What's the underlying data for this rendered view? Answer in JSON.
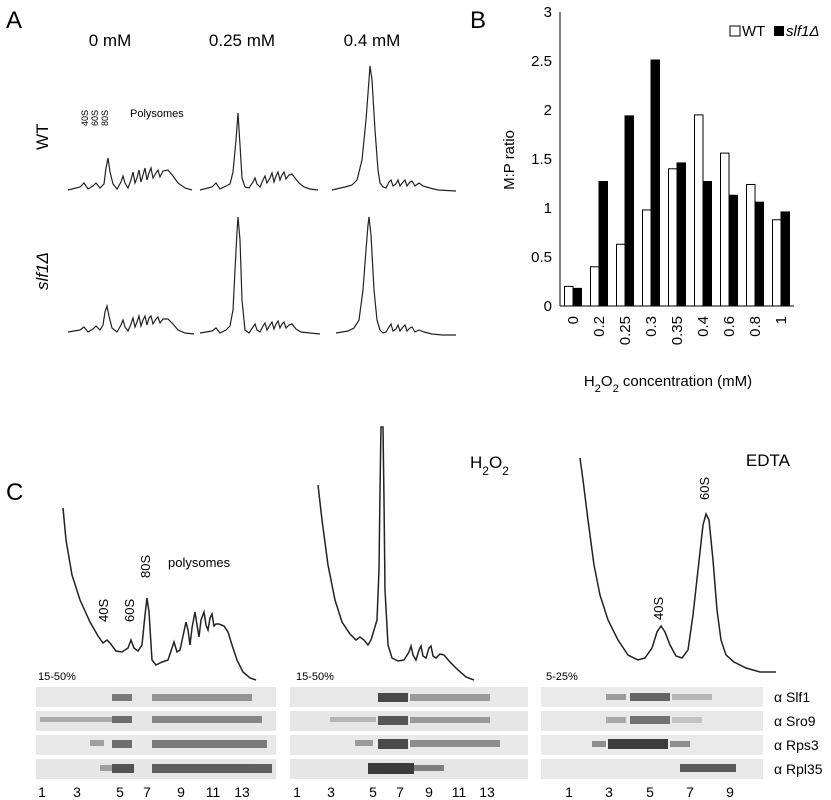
{
  "panel_a": {
    "letter": "A",
    "concentrations": [
      "0 mM",
      "0.25 mM",
      "0.4 mM"
    ],
    "rows": [
      "WT",
      "slf1Δ"
    ],
    "peak_labels": [
      "40S",
      "60S",
      "80S"
    ],
    "polysome_label": "Polysomes"
  },
  "panel_b": {
    "letter": "B",
    "legend": [
      "WT",
      "slf1Δ"
    ]
  },
  "panel_c": {
    "letter": "C",
    "profiles": [
      {
        "title": "",
        "gradient": "15-50%",
        "peak_labels": [
          "40S",
          "60S",
          "80S"
        ],
        "polysome_label": "polysomes"
      },
      {
        "title": "H2O2",
        "title_main": "H",
        "title_sub1": "2",
        "title_mid": "O",
        "title_sub2": "2",
        "gradient": "15-50%"
      },
      {
        "title": "EDTA",
        "gradient": "5-25%",
        "peak_labels": [
          "40S",
          "60S"
        ]
      }
    ],
    "antibodies": [
      "α Slf1",
      "α Sro9",
      "α Rps3",
      "α Rpl35"
    ],
    "lanes_a": [
      "1",
      "3",
      "5",
      "7",
      "9",
      "11",
      "13"
    ],
    "lanes_c": [
      "1",
      "3",
      "5",
      "7",
      "9"
    ]
  },
  "chart_data": {
    "type": "bar",
    "categories": [
      "0",
      "0.2",
      "0.25",
      "0.3",
      "0.35",
      "0.4",
      "0.6",
      "0.8",
      "1"
    ],
    "series": [
      {
        "name": "WT",
        "values": [
          0.2,
          0.4,
          0.63,
          0.98,
          1.4,
          1.95,
          1.56,
          1.24,
          0.88
        ],
        "color": "#ffffff"
      },
      {
        "name": "slf1Δ",
        "values": [
          0.18,
          1.27,
          1.94,
          2.51,
          1.46,
          1.27,
          1.13,
          1.06,
          0.96
        ],
        "color": "#000000"
      }
    ],
    "xlabel": "H2O2 concentration (mM)",
    "ylabel": "M:P ratio",
    "ylim": [
      0,
      3
    ],
    "yticks": [
      "0",
      "0.5",
      "1",
      "1.5",
      "2",
      "2.5",
      "3"
    ],
    "legend_position": "top-right",
    "grid": false
  }
}
